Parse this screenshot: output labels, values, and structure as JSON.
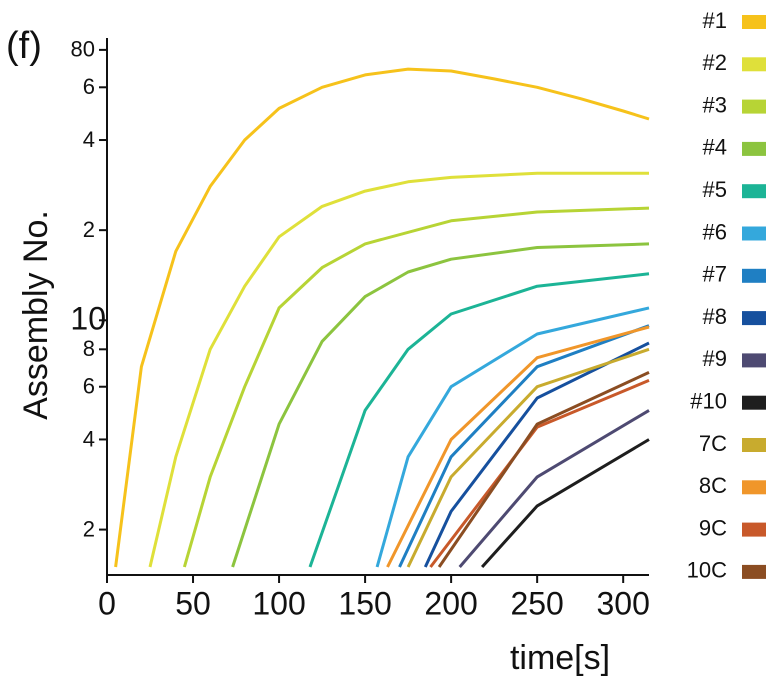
{
  "chart_data": {
    "type": "line",
    "annotation": "(f)",
    "x_label": "time[s]",
    "y_label": "Assembly No.",
    "log_y": true,
    "xlim": [
      0,
      315
    ],
    "xticks": [
      0,
      50,
      100,
      150,
      200,
      250,
      300
    ],
    "ylim": [
      1.5,
      85
    ],
    "yticks": [
      2,
      4,
      6,
      8,
      10,
      {
        "value": 20,
        "label": "2"
      },
      {
        "value": 40,
        "label": "4"
      },
      {
        "value": 60,
        "label": "6"
      },
      80
    ],
    "series": [
      {
        "name": "#1",
        "color": "#f6c21b",
        "x": [
          5,
          20,
          40,
          60,
          80,
          100,
          125,
          150,
          175,
          200,
          225,
          250,
          275,
          300,
          315
        ],
        "values": [
          1.5,
          7,
          17,
          28,
          40,
          51,
          60,
          66,
          69,
          68,
          64,
          60,
          55,
          50,
          47
        ]
      },
      {
        "name": "#2",
        "color": "#dfe03a",
        "x": [
          25,
          40,
          60,
          80,
          100,
          125,
          150,
          175,
          200,
          250,
          315
        ],
        "values": [
          1.5,
          3.5,
          8,
          13,
          19,
          24,
          27,
          29,
          30,
          31,
          31
        ]
      },
      {
        "name": "#3",
        "color": "#b7d435",
        "x": [
          45,
          60,
          80,
          100,
          125,
          150,
          200,
          250,
          315
        ],
        "values": [
          1.5,
          3,
          6,
          11,
          15,
          18,
          21.5,
          23,
          23.7
        ]
      },
      {
        "name": "#4",
        "color": "#8cc43f",
        "x": [
          73,
          100,
          125,
          150,
          175,
          200,
          250,
          315
        ],
        "values": [
          1.5,
          4.5,
          8.5,
          12,
          14.5,
          16,
          17.5,
          18
        ]
      },
      {
        "name": "#5",
        "color": "#1cb496",
        "x": [
          118,
          150,
          175,
          200,
          250,
          315
        ],
        "values": [
          1.5,
          5,
          8,
          10.5,
          13,
          14.3
        ]
      },
      {
        "name": "#6",
        "color": "#34a8dc",
        "x": [
          157,
          175,
          200,
          250,
          315
        ],
        "values": [
          1.5,
          3.5,
          6,
          9,
          11
        ]
      },
      {
        "name": "#7",
        "color": "#1f7fc3",
        "x": [
          170,
          200,
          250,
          315
        ],
        "values": [
          1.5,
          3.5,
          7,
          9.6
        ]
      },
      {
        "name": "#8",
        "color": "#16509e",
        "x": [
          185,
          200,
          250,
          315
        ],
        "values": [
          1.5,
          2.3,
          5.5,
          8.4
        ]
      },
      {
        "name": "#9",
        "color": "#4e4a72",
        "x": [
          205,
          250,
          315
        ],
        "values": [
          1.5,
          3,
          5
        ]
      },
      {
        "name": "#10",
        "color": "#1e1e1e",
        "x": [
          218,
          250,
          315
        ],
        "values": [
          1.5,
          2.4,
          4
        ]
      },
      {
        "name": "7C",
        "color": "#c8ab2e",
        "x": [
          175,
          200,
          250,
          315
        ],
        "values": [
          1.5,
          3,
          6,
          8
        ]
      },
      {
        "name": "8C",
        "color": "#f0962a",
        "x": [
          163,
          200,
          250,
          315
        ],
        "values": [
          1.5,
          4,
          7.5,
          9.5
        ]
      },
      {
        "name": "9C",
        "color": "#c8592a",
        "x": [
          188,
          250,
          315
        ],
        "values": [
          1.5,
          4.4,
          6.3
        ]
      },
      {
        "name": "10C",
        "color": "#8b4d22",
        "x": [
          193,
          250,
          315
        ],
        "values": [
          1.5,
          4.5,
          6.7
        ]
      }
    ]
  }
}
